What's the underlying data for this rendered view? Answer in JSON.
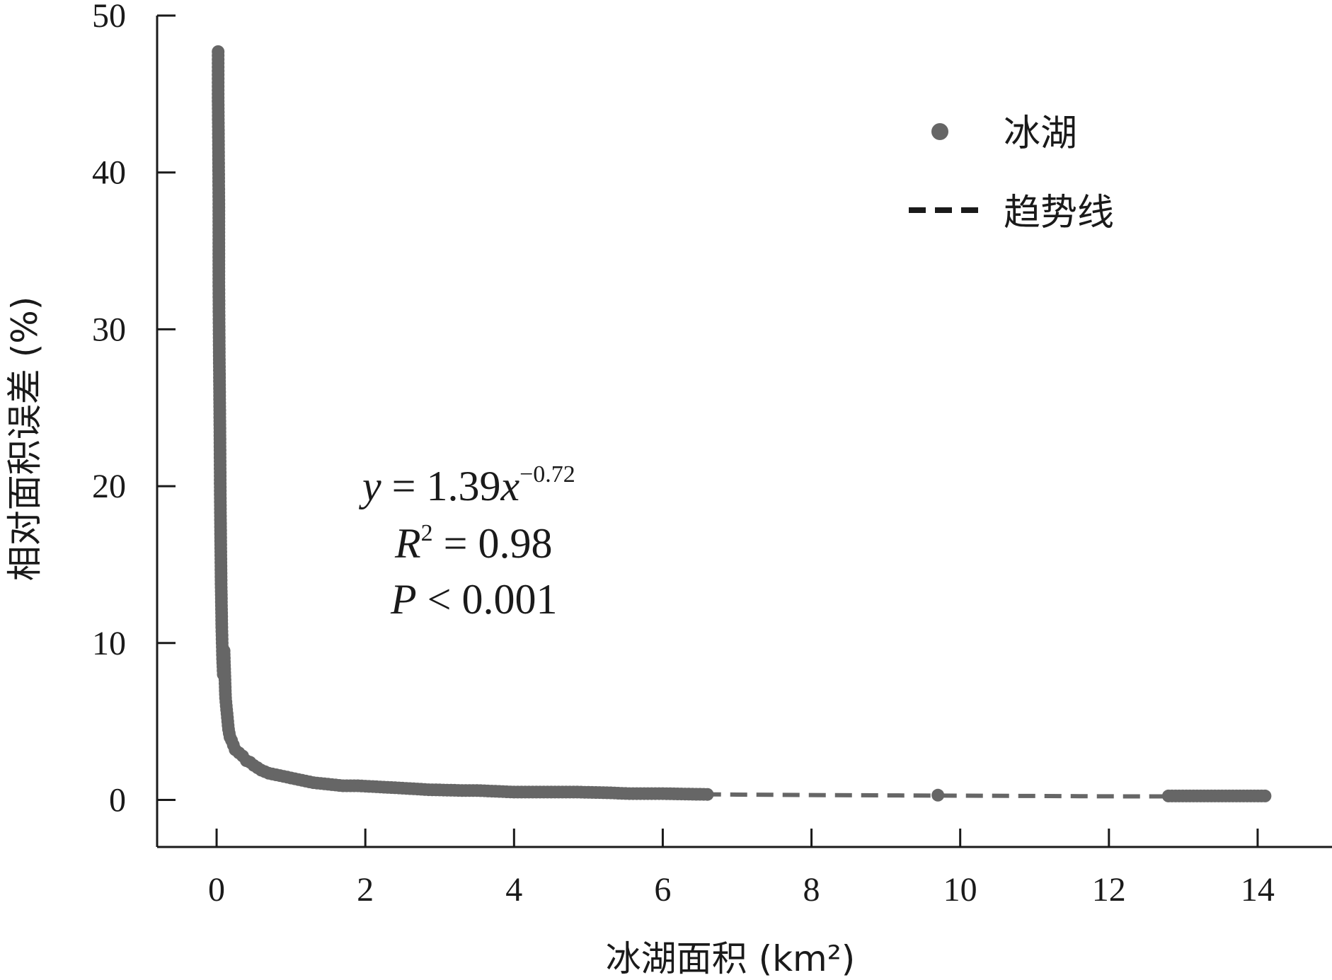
{
  "chart_data": {
    "type": "scatter",
    "xlabel": "冰湖面积 (km²)",
    "ylabel": "相对面积误差 (%)",
    "xlim": [
      -0.8,
      15
    ],
    "ylim": [
      -3,
      50
    ],
    "xticks": [
      0,
      2,
      4,
      6,
      8,
      10,
      12,
      14
    ],
    "yticks": [
      0,
      10,
      20,
      30,
      40,
      50
    ],
    "xtick_labels": [
      "0",
      "2",
      "4",
      "6",
      "8",
      "10",
      "12",
      "14"
    ],
    "ytick_labels": [
      "0",
      "10",
      "20",
      "30",
      "40",
      "50"
    ],
    "grid": false,
    "legend_position": "top-right",
    "colors": {
      "points": "#666666",
      "trend": "#666666",
      "axis": "#1a1a1a",
      "legend_dash": "#1a1a1a"
    },
    "series": [
      {
        "name": "冰湖",
        "kind": "scatter",
        "x": [
          0.02,
          0.02,
          0.025,
          0.03,
          0.03,
          0.035,
          0.04,
          0.045,
          0.05,
          0.06,
          0.07,
          0.08,
          0.09,
          0.1,
          0.12,
          0.14,
          0.16,
          0.18,
          0.2,
          0.25,
          0.3,
          0.35,
          0.4,
          0.45,
          0.5,
          0.6,
          0.7,
          0.8,
          0.9,
          1.0,
          1.1,
          1.2,
          1.3,
          1.5,
          1.7,
          1.9,
          2.1,
          2.3,
          2.5,
          2.85,
          3.3,
          3.5,
          4.0,
          4.5,
          4.85,
          5.3,
          5.55,
          6.0,
          6.6,
          9.7,
          12.8,
          14.1
        ],
        "y": [
          47.7,
          45.0,
          42.0,
          38.0,
          33.0,
          29.0,
          26.0,
          23.0,
          19.0,
          14.0,
          11.0,
          9.0,
          8.0,
          9.5,
          6.5,
          5.5,
          4.5,
          4.0,
          3.8,
          3.2,
          3.0,
          2.8,
          2.5,
          2.4,
          2.2,
          1.9,
          1.7,
          1.6,
          1.5,
          1.4,
          1.3,
          1.2,
          1.1,
          1.0,
          0.9,
          0.9,
          0.85,
          0.8,
          0.75,
          0.65,
          0.6,
          0.6,
          0.5,
          0.5,
          0.5,
          0.45,
          0.4,
          0.4,
          0.35,
          0.3,
          0.25,
          0.25
        ]
      },
      {
        "name": "趋势线",
        "kind": "line",
        "style": "dashed",
        "x": [
          0.19,
          0.25,
          0.3,
          0.4,
          0.5,
          0.6,
          0.8,
          1.0,
          1.3,
          1.6,
          2.0,
          2.5,
          3.0,
          4.0,
          5.0,
          6.0,
          7.0,
          8.0,
          9.0,
          10.0,
          11.0,
          12.0,
          13.0,
          14.1
        ],
        "y": [
          4.6,
          3.8,
          3.3,
          2.7,
          2.3,
          2.0,
          1.64,
          1.39,
          1.15,
          0.99,
          0.84,
          0.72,
          0.63,
          0.51,
          0.44,
          0.38,
          0.34,
          0.31,
          0.29,
          0.27,
          0.25,
          0.23,
          0.22,
          0.21
        ]
      }
    ],
    "annotations": [
      {
        "id": "equation",
        "parts": [
          "y",
          " = 1.39",
          "x",
          "−0.72"
        ]
      },
      {
        "id": "r2",
        "parts": [
          "R",
          "2",
          " = 0.98"
        ]
      },
      {
        "id": "p",
        "parts": [
          "P",
          " < 0.001"
        ]
      }
    ]
  }
}
